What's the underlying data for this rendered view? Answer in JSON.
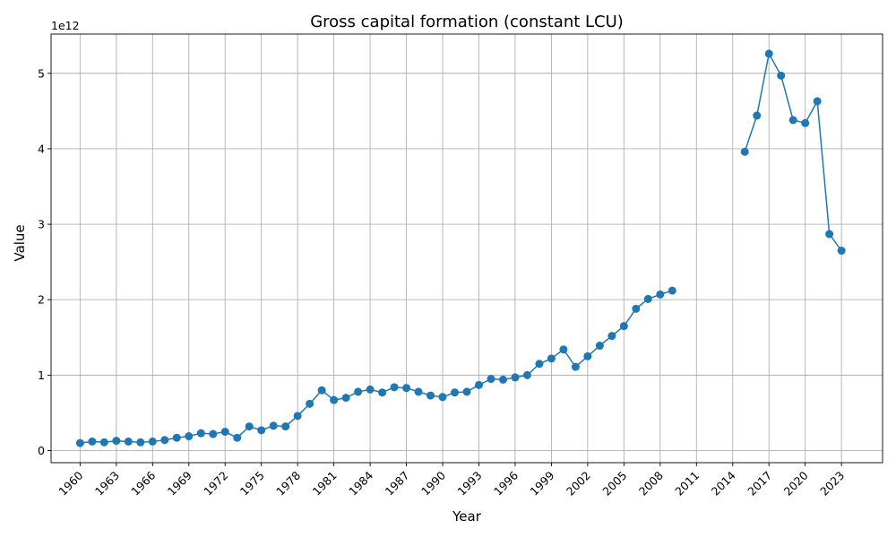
{
  "chart_data": {
    "type": "line",
    "title": "Gross capital formation (constant LCU)",
    "xlabel": "Year",
    "ylabel": "Value",
    "y_offset_text": "1e12",
    "scale_factor": 1000000000000,
    "grid": true,
    "marker": "circle",
    "color": "#1f77b4",
    "xlim": [
      1957.6,
      2026.4
    ],
    "ylim": [
      -0.16,
      5.52
    ],
    "x_ticks": [
      1960,
      1963,
      1966,
      1969,
      1972,
      1975,
      1978,
      1981,
      1984,
      1987,
      1990,
      1993,
      1996,
      1999,
      2002,
      2005,
      2008,
      2011,
      2014,
      2017,
      2020,
      2023
    ],
    "y_ticks": [
      0,
      1,
      2,
      3,
      4,
      5
    ],
    "series": [
      {
        "x": [
          1960,
          1961,
          1962,
          1963,
          1964,
          1965,
          1966,
          1967,
          1968,
          1969,
          1970,
          1971,
          1972,
          1973,
          1974,
          1975,
          1976,
          1977,
          1978,
          1979,
          1980,
          1981,
          1982,
          1983,
          1984,
          1985,
          1986,
          1987,
          1988,
          1989,
          1990,
          1991,
          1992,
          1993,
          1994,
          1995,
          1996,
          1997,
          1998,
          1999,
          2000,
          2001,
          2002,
          2003,
          2004,
          2005,
          2006,
          2007,
          2008,
          2009,
          2010,
          2011,
          2012,
          2013,
          2014,
          2015,
          2016,
          2017,
          2018,
          2019,
          2020,
          2021,
          2022,
          2023
        ],
        "y": [
          0.1,
          0.12,
          0.11,
          0.13,
          0.12,
          0.11,
          0.12,
          0.14,
          0.17,
          0.19,
          0.23,
          0.22,
          0.25,
          0.17,
          0.32,
          0.27,
          0.33,
          0.32,
          0.46,
          0.62,
          0.8,
          0.67,
          0.7,
          0.78,
          0.81,
          0.77,
          0.84,
          0.83,
          0.78,
          0.73,
          0.71,
          0.77,
          0.78,
          0.87,
          0.95,
          0.94,
          0.97,
          1.0,
          1.15,
          1.22,
          1.34,
          1.11,
          1.25,
          1.39,
          1.52,
          1.65,
          1.88,
          2.01,
          2.07,
          2.12,
          null,
          null,
          null,
          null,
          null,
          3.96,
          4.44,
          5.26,
          4.97,
          4.38,
          4.34,
          4.63,
          2.87,
          2.65
        ]
      }
    ]
  }
}
